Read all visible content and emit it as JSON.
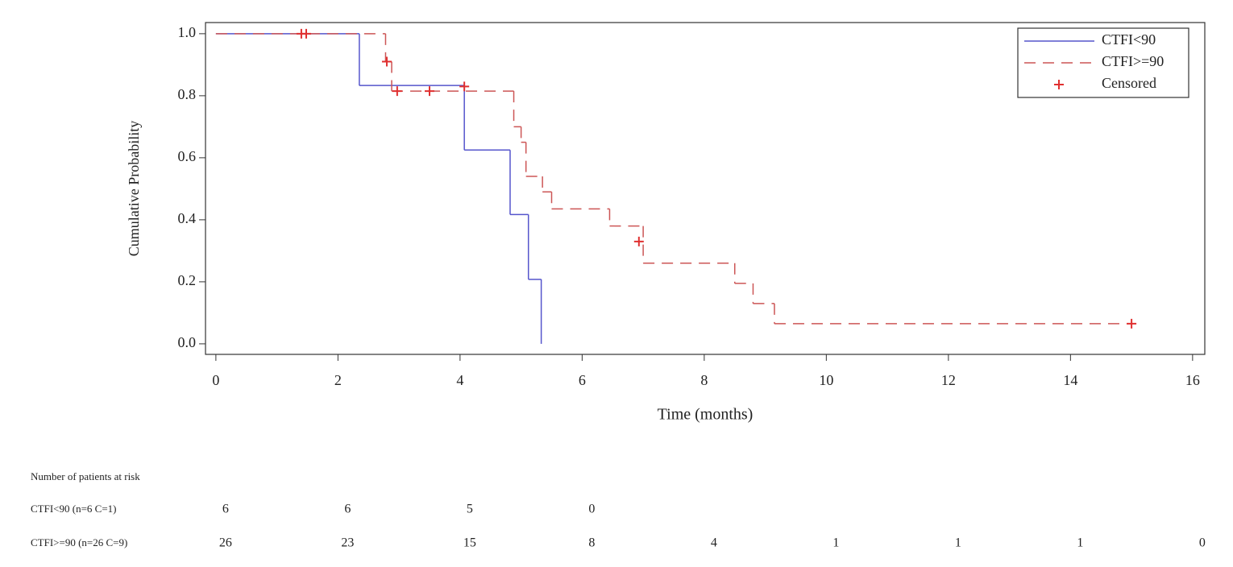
{
  "chart_data": {
    "type": "step",
    "ylabel": "Cumulative Probability",
    "xlabel": "Time (months)",
    "xlim": [
      -0.17,
      16.2
    ],
    "ylim": [
      -0.034,
      1.036
    ],
    "xticks": [
      0,
      2,
      4,
      6,
      8,
      10,
      12,
      14,
      16
    ],
    "yticks": [
      {
        "value": 0,
        "label": "0.0"
      },
      0.2,
      0.4,
      0.6,
      0.8,
      {
        "value": 1,
        "label": "1.0"
      }
    ],
    "legend": "upper right",
    "series": [
      {
        "name": "CTFI<90",
        "color": "#5555cc",
        "dash": "solid",
        "x": [
          0,
          2.35,
          4.07,
          4.82,
          5.12,
          5.33
        ],
        "values": [
          1.0,
          0.833,
          0.625,
          0.417,
          0.208,
          0.0
        ]
      },
      {
        "name": "CTFI>=90",
        "color": "#cc5555",
        "dash": "dashed",
        "x": [
          0,
          2.78,
          2.88,
          4.88,
          5.0,
          5.08,
          5.35,
          5.5,
          6.45,
          7.0,
          8.5,
          8.8,
          9.15,
          15.0
        ],
        "values": [
          1.0,
          0.91,
          0.815,
          0.7,
          0.65,
          0.54,
          0.49,
          0.435,
          0.38,
          0.26,
          0.195,
          0.13,
          0.065,
          0.065
        ]
      },
      {
        "name": "Censored",
        "color": "#e03030",
        "marker": "+",
        "x": [
          1.4,
          1.48,
          2.8,
          2.97,
          3.5,
          4.07,
          6.93,
          15.0
        ],
        "values": [
          1.0,
          1.0,
          0.91,
          0.815,
          0.815,
          0.83,
          0.33,
          0.065
        ]
      }
    ],
    "risk_table": {
      "title": "Number of patients at risk",
      "rows": [
        {
          "label": "CTFI<90 (n=6 C=1)",
          "values": [
            6,
            6,
            5,
            0
          ]
        },
        {
          "label": "CTFI>=90 (n=26 C=9)",
          "values": [
            26,
            23,
            15,
            8,
            4,
            1,
            1,
            1,
            0
          ]
        }
      ]
    }
  }
}
